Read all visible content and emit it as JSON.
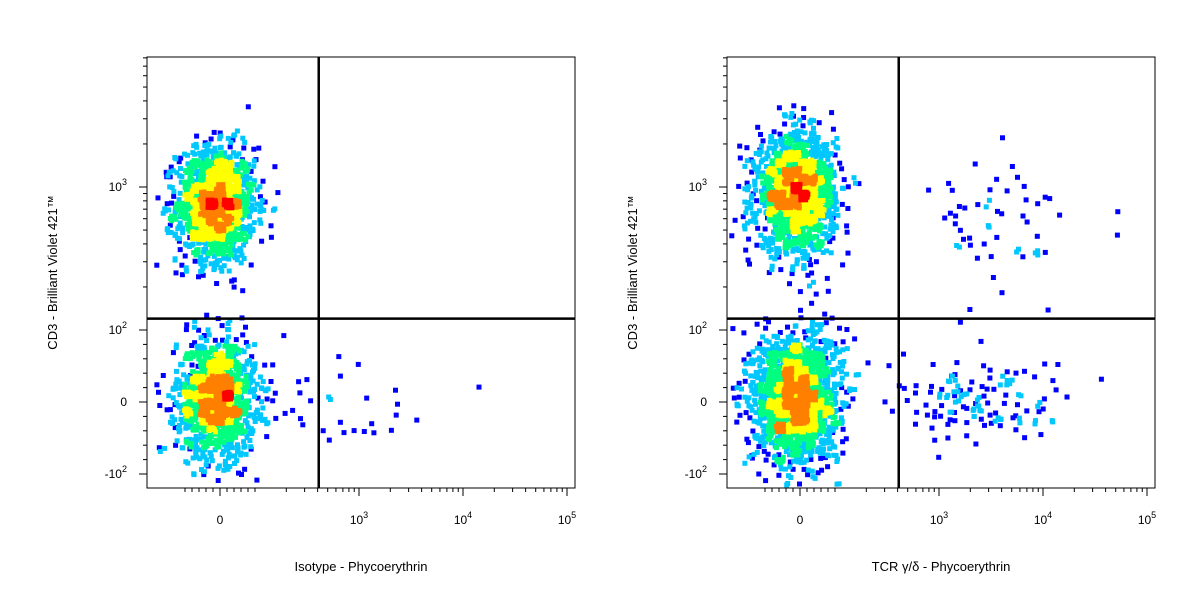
{
  "chart_data": [
    {
      "type": "scatter",
      "title": "",
      "xlabel": "Isotype - Phycoerythrin",
      "ylabel": "CD3 - Brilliant Violet 421™",
      "xscale": "biexponential",
      "yscale": "biexponential",
      "x_tick_labels": [
        {
          "value": 0,
          "base": "0",
          "exp": ""
        },
        {
          "value": 1000,
          "base": "10",
          "exp": "3"
        },
        {
          "value": 10000,
          "base": "10",
          "exp": "4"
        },
        {
          "value": 100000,
          "base": "10",
          "exp": "5"
        }
      ],
      "y_tick_labels": [
        {
          "value": -100,
          "base": "-10",
          "exp": "2"
        },
        {
          "value": 0,
          "base": "0",
          "exp": ""
        },
        {
          "value": 100,
          "base": "10",
          "exp": "2"
        },
        {
          "value": 1000,
          "base": "10",
          "exp": "3"
        }
      ],
      "quadrant_gate": {
        "x": 410,
        "y": 120
      },
      "populations": [
        {
          "center": [
            -10,
            750
          ],
          "spread": [
            55,
            0.4
          ],
          "count": 1400
        },
        {
          "center": [
            -10,
            5
          ],
          "spread": [
            55,
            40
          ],
          "count": 1300
        },
        {
          "center": [
            900,
            0
          ],
          "spread": [
            1.0,
            40
          ],
          "count": 30
        }
      ],
      "color_scale": [
        "#0000ff",
        "#00c8ff",
        "#00ff80",
        "#ffff00",
        "#ff8000",
        "#ff0000"
      ],
      "grid": false
    },
    {
      "type": "scatter",
      "title": "",
      "xlabel": "TCR γ/δ - Phycoerythrin",
      "ylabel": "CD3 - Brilliant Violet 421™",
      "xscale": "biexponential",
      "yscale": "biexponential",
      "x_tick_labels": [
        {
          "value": 0,
          "base": "0",
          "exp": ""
        },
        {
          "value": 1000,
          "base": "10",
          "exp": "3"
        },
        {
          "value": 10000,
          "base": "10",
          "exp": "4"
        },
        {
          "value": 100000,
          "base": "10",
          "exp": "5"
        }
      ],
      "y_tick_labels": [
        {
          "value": -100,
          "base": "-10",
          "exp": "2"
        },
        {
          "value": 0,
          "base": "0",
          "exp": ""
        },
        {
          "value": 100,
          "base": "10",
          "exp": "2"
        },
        {
          "value": 1000,
          "base": "10",
          "exp": "3"
        }
      ],
      "quadrant_gate": {
        "x": 410,
        "y": 120
      },
      "populations": [
        {
          "center": [
            -10,
            900
          ],
          "spread": [
            55,
            0.4
          ],
          "count": 1600
        },
        {
          "center": [
            -10,
            5
          ],
          "spread": [
            60,
            45
          ],
          "count": 1700
        },
        {
          "center": [
            2500,
            0
          ],
          "spread": [
            0.9,
            30
          ],
          "count": 130
        },
        {
          "center": [
            4000,
            500
          ],
          "spread": [
            0.7,
            0.5
          ],
          "count": 55
        }
      ],
      "color_scale": [
        "#0000ff",
        "#00c8ff",
        "#00ff80",
        "#ffff00",
        "#ff8000",
        "#ff0000"
      ],
      "grid": false
    }
  ]
}
